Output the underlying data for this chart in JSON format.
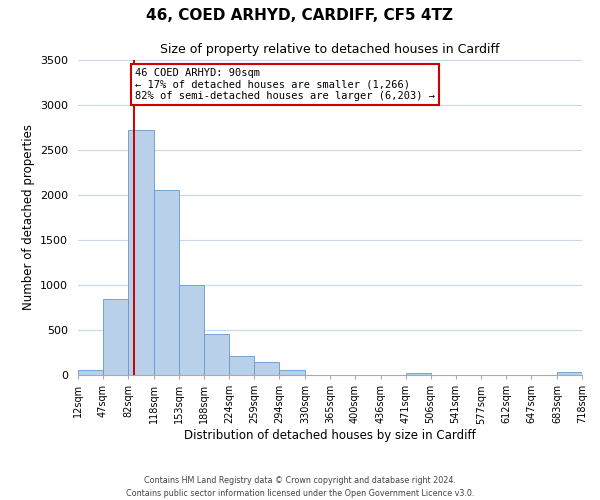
{
  "title": "46, COED ARHYD, CARDIFF, CF5 4TZ",
  "subtitle": "Size of property relative to detached houses in Cardiff",
  "xlabel": "Distribution of detached houses by size in Cardiff",
  "ylabel": "Number of detached properties",
  "bin_edges": [
    12,
    47,
    82,
    118,
    153,
    188,
    224,
    259,
    294,
    330,
    365,
    400,
    436,
    471,
    506,
    541,
    577,
    612,
    647,
    683,
    718
  ],
  "bar_heights": [
    55,
    850,
    2720,
    2060,
    1000,
    455,
    215,
    145,
    55,
    0,
    0,
    0,
    0,
    25,
    0,
    0,
    0,
    0,
    0,
    35
  ],
  "bar_color": "#b8d0ea",
  "bar_edgecolor": "#6699cc",
  "property_line_x": 90,
  "property_line_color": "#cc0000",
  "annotation_title": "46 COED ARHYD: 90sqm",
  "annotation_line1": "← 17% of detached houses are smaller (1,266)",
  "annotation_line2": "82% of semi-detached houses are larger (6,203) →",
  "annotation_box_edgecolor": "#cc0000",
  "ylim": [
    0,
    3500
  ],
  "yticks": [
    0,
    500,
    1000,
    1500,
    2000,
    2500,
    3000,
    3500
  ],
  "xtick_labels": [
    "12sqm",
    "47sqm",
    "82sqm",
    "118sqm",
    "153sqm",
    "188sqm",
    "224sqm",
    "259sqm",
    "294sqm",
    "330sqm",
    "365sqm",
    "400sqm",
    "436sqm",
    "471sqm",
    "506sqm",
    "541sqm",
    "577sqm",
    "612sqm",
    "647sqm",
    "683sqm",
    "718sqm"
  ],
  "footer1": "Contains HM Land Registry data © Crown copyright and database right 2024.",
  "footer2": "Contains public sector information licensed under the Open Government Licence v3.0.",
  "background_color": "#ffffff",
  "grid_color": "#c8d8ea"
}
